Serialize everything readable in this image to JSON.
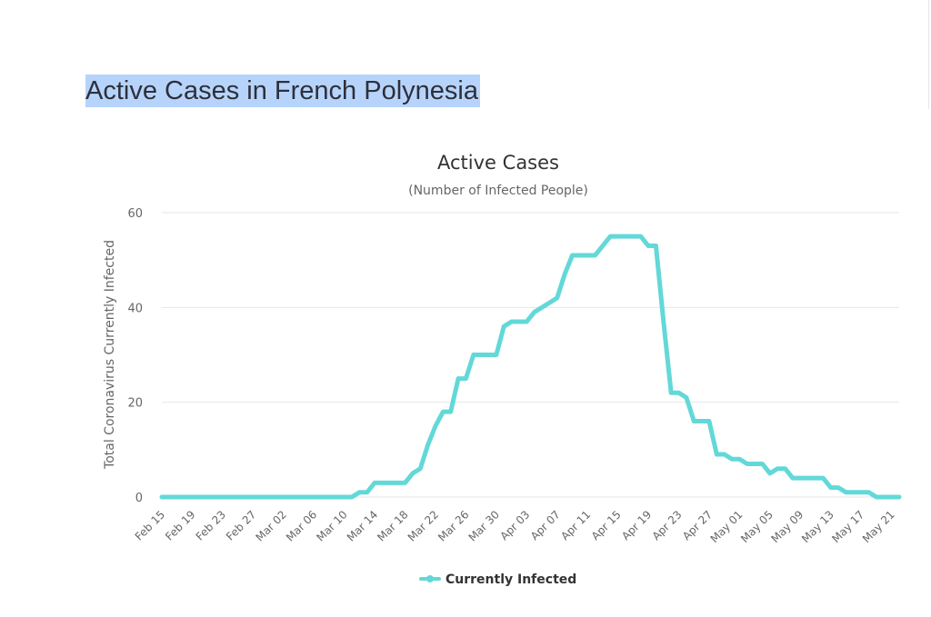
{
  "page": {
    "heading": "Active Cases in French Polynesia"
  },
  "chart_data": {
    "type": "line",
    "title": "Active Cases",
    "subtitle": "(Number of Infected People)",
    "xlabel": "",
    "ylabel": "Total Coronavirus Currently Infected",
    "ylim": [
      0,
      60
    ],
    "yticks": [
      0,
      20,
      40,
      60
    ],
    "grid": true,
    "legend_position": "bottom-center",
    "series_color": "#63d8d8",
    "x_tick_labels": [
      "Feb 15",
      "Feb 19",
      "Feb 23",
      "Feb 27",
      "Mar 02",
      "Mar 06",
      "Mar 10",
      "Mar 14",
      "Mar 18",
      "Mar 22",
      "Mar 26",
      "Mar 30",
      "Apr 03",
      "Apr 07",
      "Apr 11",
      "Apr 15",
      "Apr 19",
      "Apr 23",
      "Apr 27",
      "May 01",
      "May 05",
      "May 09",
      "May 13",
      "May 17",
      "May 21"
    ],
    "x": [
      "Feb 15",
      "Feb 16",
      "Feb 17",
      "Feb 18",
      "Feb 19",
      "Feb 20",
      "Feb 21",
      "Feb 22",
      "Feb 23",
      "Feb 24",
      "Feb 25",
      "Feb 26",
      "Feb 27",
      "Feb 28",
      "Feb 29",
      "Mar 01",
      "Mar 02",
      "Mar 03",
      "Mar 04",
      "Mar 05",
      "Mar 06",
      "Mar 07",
      "Mar 08",
      "Mar 09",
      "Mar 10",
      "Mar 11",
      "Mar 12",
      "Mar 13",
      "Mar 14",
      "Mar 15",
      "Mar 16",
      "Mar 17",
      "Mar 18",
      "Mar 19",
      "Mar 20",
      "Mar 21",
      "Mar 22",
      "Mar 23",
      "Mar 24",
      "Mar 25",
      "Mar 26",
      "Mar 27",
      "Mar 28",
      "Mar 29",
      "Mar 30",
      "Mar 31",
      "Apr 01",
      "Apr 02",
      "Apr 03",
      "Apr 04",
      "Apr 05",
      "Apr 06",
      "Apr 07",
      "Apr 08",
      "Apr 09",
      "Apr 10",
      "Apr 11",
      "Apr 12",
      "Apr 13",
      "Apr 14",
      "Apr 15",
      "Apr 16",
      "Apr 17",
      "Apr 18",
      "Apr 19",
      "Apr 20",
      "Apr 21",
      "Apr 22",
      "Apr 23",
      "Apr 24",
      "Apr 25",
      "Apr 26",
      "Apr 27",
      "Apr 28",
      "Apr 29",
      "Apr 30",
      "May 01",
      "May 02",
      "May 03",
      "May 04",
      "May 05",
      "May 06",
      "May 07",
      "May 08",
      "May 09",
      "May 10",
      "May 11",
      "May 12",
      "May 13",
      "May 14",
      "May 15",
      "May 16",
      "May 17",
      "May 18",
      "May 19",
      "May 20",
      "May 21",
      "May 22"
    ],
    "series": [
      {
        "name": "Currently Infected",
        "values": [
          0,
          0,
          0,
          0,
          0,
          0,
          0,
          0,
          0,
          0,
          0,
          0,
          0,
          0,
          0,
          0,
          0,
          0,
          0,
          0,
          0,
          0,
          0,
          0,
          0,
          0,
          1,
          1,
          3,
          3,
          3,
          3,
          3,
          5,
          6,
          11,
          15,
          18,
          18,
          25,
          25,
          30,
          30,
          30,
          30,
          36,
          37,
          37,
          37,
          39,
          40,
          41,
          42,
          47,
          51,
          51,
          51,
          51,
          53,
          55,
          55,
          55,
          55,
          55,
          53,
          53,
          37,
          22,
          22,
          21,
          16,
          16,
          16,
          9,
          9,
          8,
          8,
          7,
          7,
          7,
          5,
          6,
          6,
          4,
          4,
          4,
          4,
          4,
          2,
          2,
          1,
          1,
          1,
          1,
          0,
          0,
          0,
          0
        ]
      }
    ]
  }
}
